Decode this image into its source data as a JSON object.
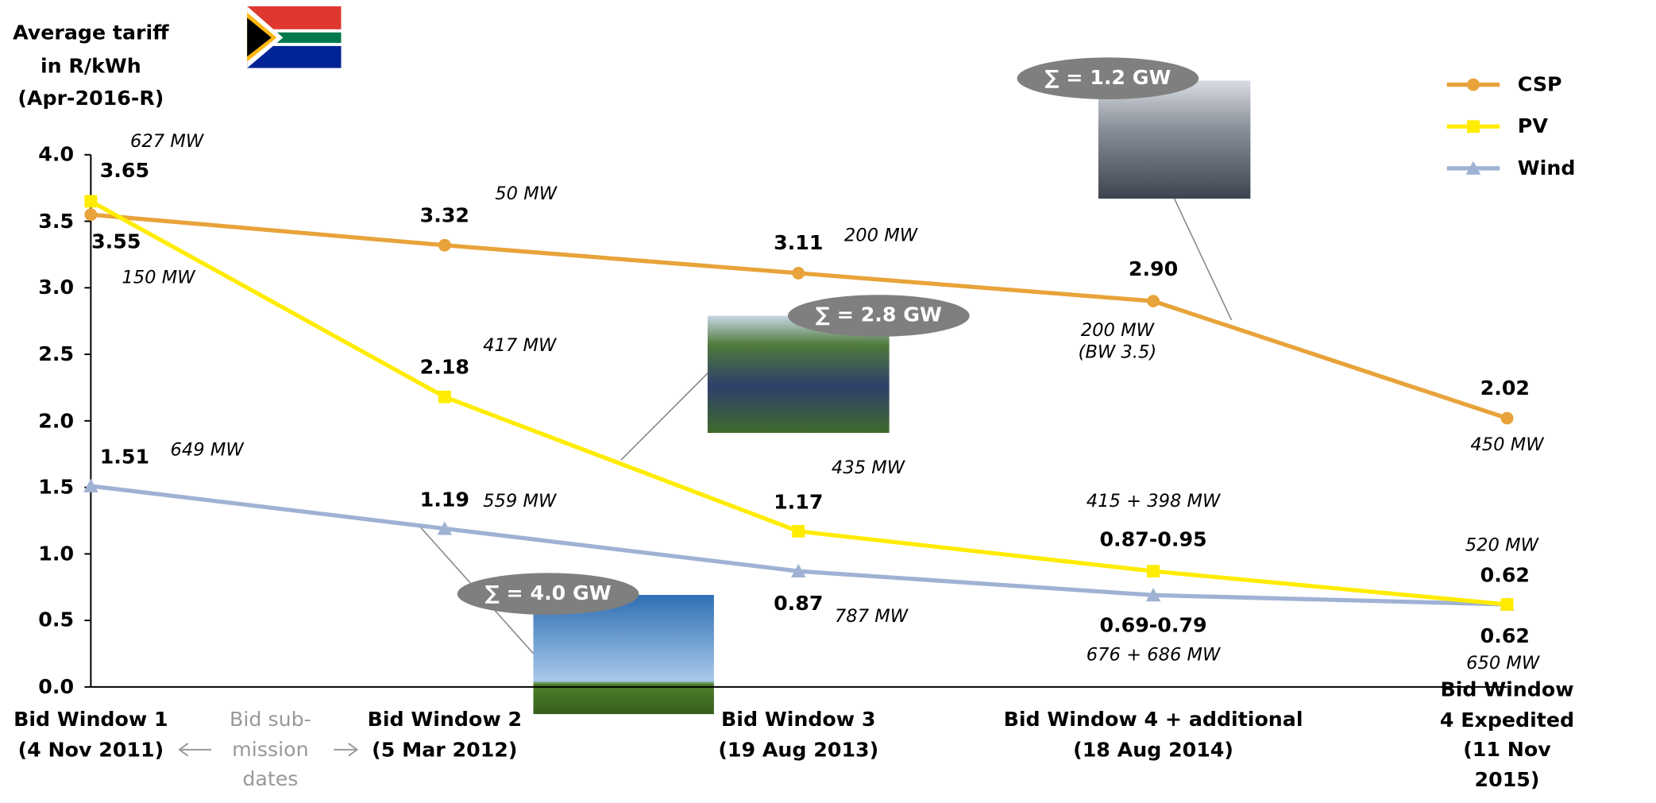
{
  "chart_data": {
    "type": "line",
    "y_label": [
      "Average tariff",
      "in R/kWh",
      "(Apr-2016-R)"
    ],
    "categories": [
      "Bid Window 1\n(4 Nov 2011)",
      "Bid Window 2\n(5 Mar 2012)",
      "Bid Window 3\n(19 Aug 2013)",
      "Bid Window 4 + additional\n(18 Aug 2014)",
      "Bid Window 4 Expedited\n(11 Nov 2015)"
    ],
    "series": [
      {
        "name": "CSP",
        "color": "#e8a33a",
        "marker": "circle",
        "values": [
          3.55,
          3.32,
          3.11,
          2.9,
          2.02
        ],
        "value_labels": [
          "3.55",
          "3.32",
          "3.11",
          "2.90",
          "2.02"
        ],
        "capacity_labels": [
          "150 MW",
          "50 MW",
          "200 MW",
          "200 MW\n(BW 3.5)",
          "450 MW"
        ]
      },
      {
        "name": "PV",
        "color": "#ffec00",
        "marker": "square",
        "values": [
          3.65,
          2.18,
          1.17,
          0.87,
          0.62
        ],
        "value_labels": [
          "3.65",
          "2.18",
          "1.17",
          "0.87-0.95",
          "0.62"
        ],
        "capacity_labels": [
          "627 MW",
          "417 MW",
          "435 MW",
          "415 + 398 MW",
          "520 MW"
        ]
      },
      {
        "name": "Wind",
        "color": "#9fb2d4",
        "marker": "triangle",
        "values": [
          1.51,
          1.19,
          0.87,
          0.69,
          0.62
        ],
        "value_labels": [
          "1.51",
          "1.19",
          "0.87",
          "0.69-0.79",
          "0.62"
        ],
        "capacity_labels": [
          "649 MW",
          "559 MW",
          "787 MW",
          "676 + 686 MW",
          "650 MW"
        ]
      }
    ],
    "ylim": [
      0,
      4
    ],
    "yticks": [
      {
        "value": 0,
        "label": "0.0"
      },
      0.5,
      {
        "value": 1,
        "label": "1.0"
      },
      1.5,
      {
        "value": 2,
        "label": "2.0"
      },
      2.5,
      {
        "value": 3,
        "label": "3.0"
      },
      3.5,
      {
        "value": 4,
        "label": "4.0"
      }
    ],
    "legend": "top-right",
    "bid_note": "Bid sub-\nmission\ndates",
    "totals": [
      "∑ = 1.2 GW",
      "∑ = 2.8 GW",
      "∑ = 4.0 GW"
    ]
  }
}
